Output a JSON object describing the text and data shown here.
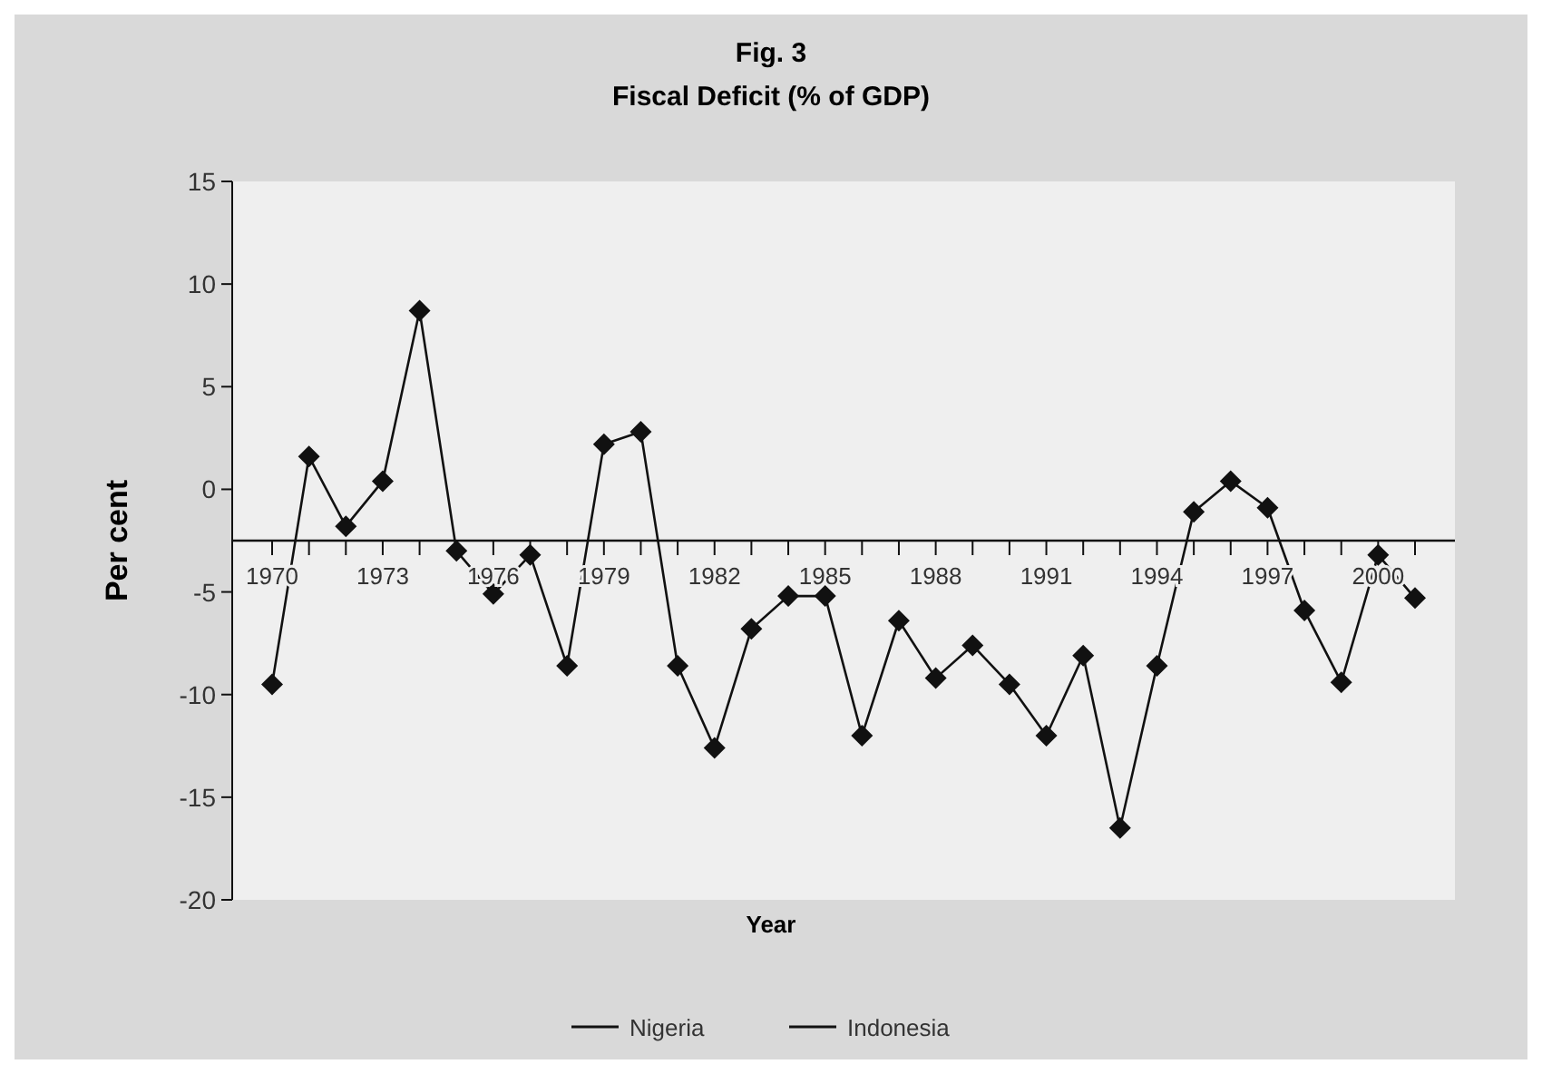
{
  "chart_data": {
    "type": "line",
    "title": "Fig. 3",
    "subtitle": "Fiscal Deficit (% of GDP)",
    "xlabel": "Year",
    "ylabel": "Per cent",
    "categories": [
      "1970",
      null,
      null,
      "1973",
      null,
      null,
      "1976",
      null,
      null,
      "1979",
      null,
      null,
      "1982",
      null,
      null,
      "1985",
      null,
      null,
      "1988",
      null,
      null,
      "1991",
      null,
      null,
      "1994",
      null,
      null,
      "1997",
      null,
      null,
      "2000",
      null
    ],
    "series": [
      {
        "name": "Nigeria",
        "color": "#111111",
        "marker": "diamond",
        "values": [
          -9.5,
          1.6,
          -1.8,
          0.4,
          8.7,
          -3.0,
          -5.1,
          -3.2,
          -8.6,
          2.2,
          2.8,
          -8.6,
          -12.6,
          -6.8,
          -5.2,
          -5.2,
          -12.0,
          -6.4,
          -9.2,
          -7.6,
          -9.5,
          -12.0,
          -8.1,
          -16.5,
          -8.6,
          -1.1,
          0.4,
          -0.9,
          -5.9,
          -9.4,
          -3.2,
          -5.3
        ]
      },
      {
        "name": "Indonesia",
        "color": "#111111",
        "marker": "none",
        "values": [
          null,
          null,
          null,
          null,
          null,
          null,
          null,
          null,
          null,
          null,
          null,
          null,
          null,
          null,
          null,
          null,
          null,
          null,
          null,
          null,
          null,
          null,
          null,
          null,
          null,
          null,
          null,
          null,
          null,
          null,
          null,
          null
        ]
      }
    ],
    "ylim": [
      -20,
      15
    ],
    "yticks": [
      -20,
      -15,
      -10,
      -5,
      0,
      5,
      10,
      15
    ],
    "grid": false,
    "legend": "bottom",
    "line_style": "solid"
  }
}
